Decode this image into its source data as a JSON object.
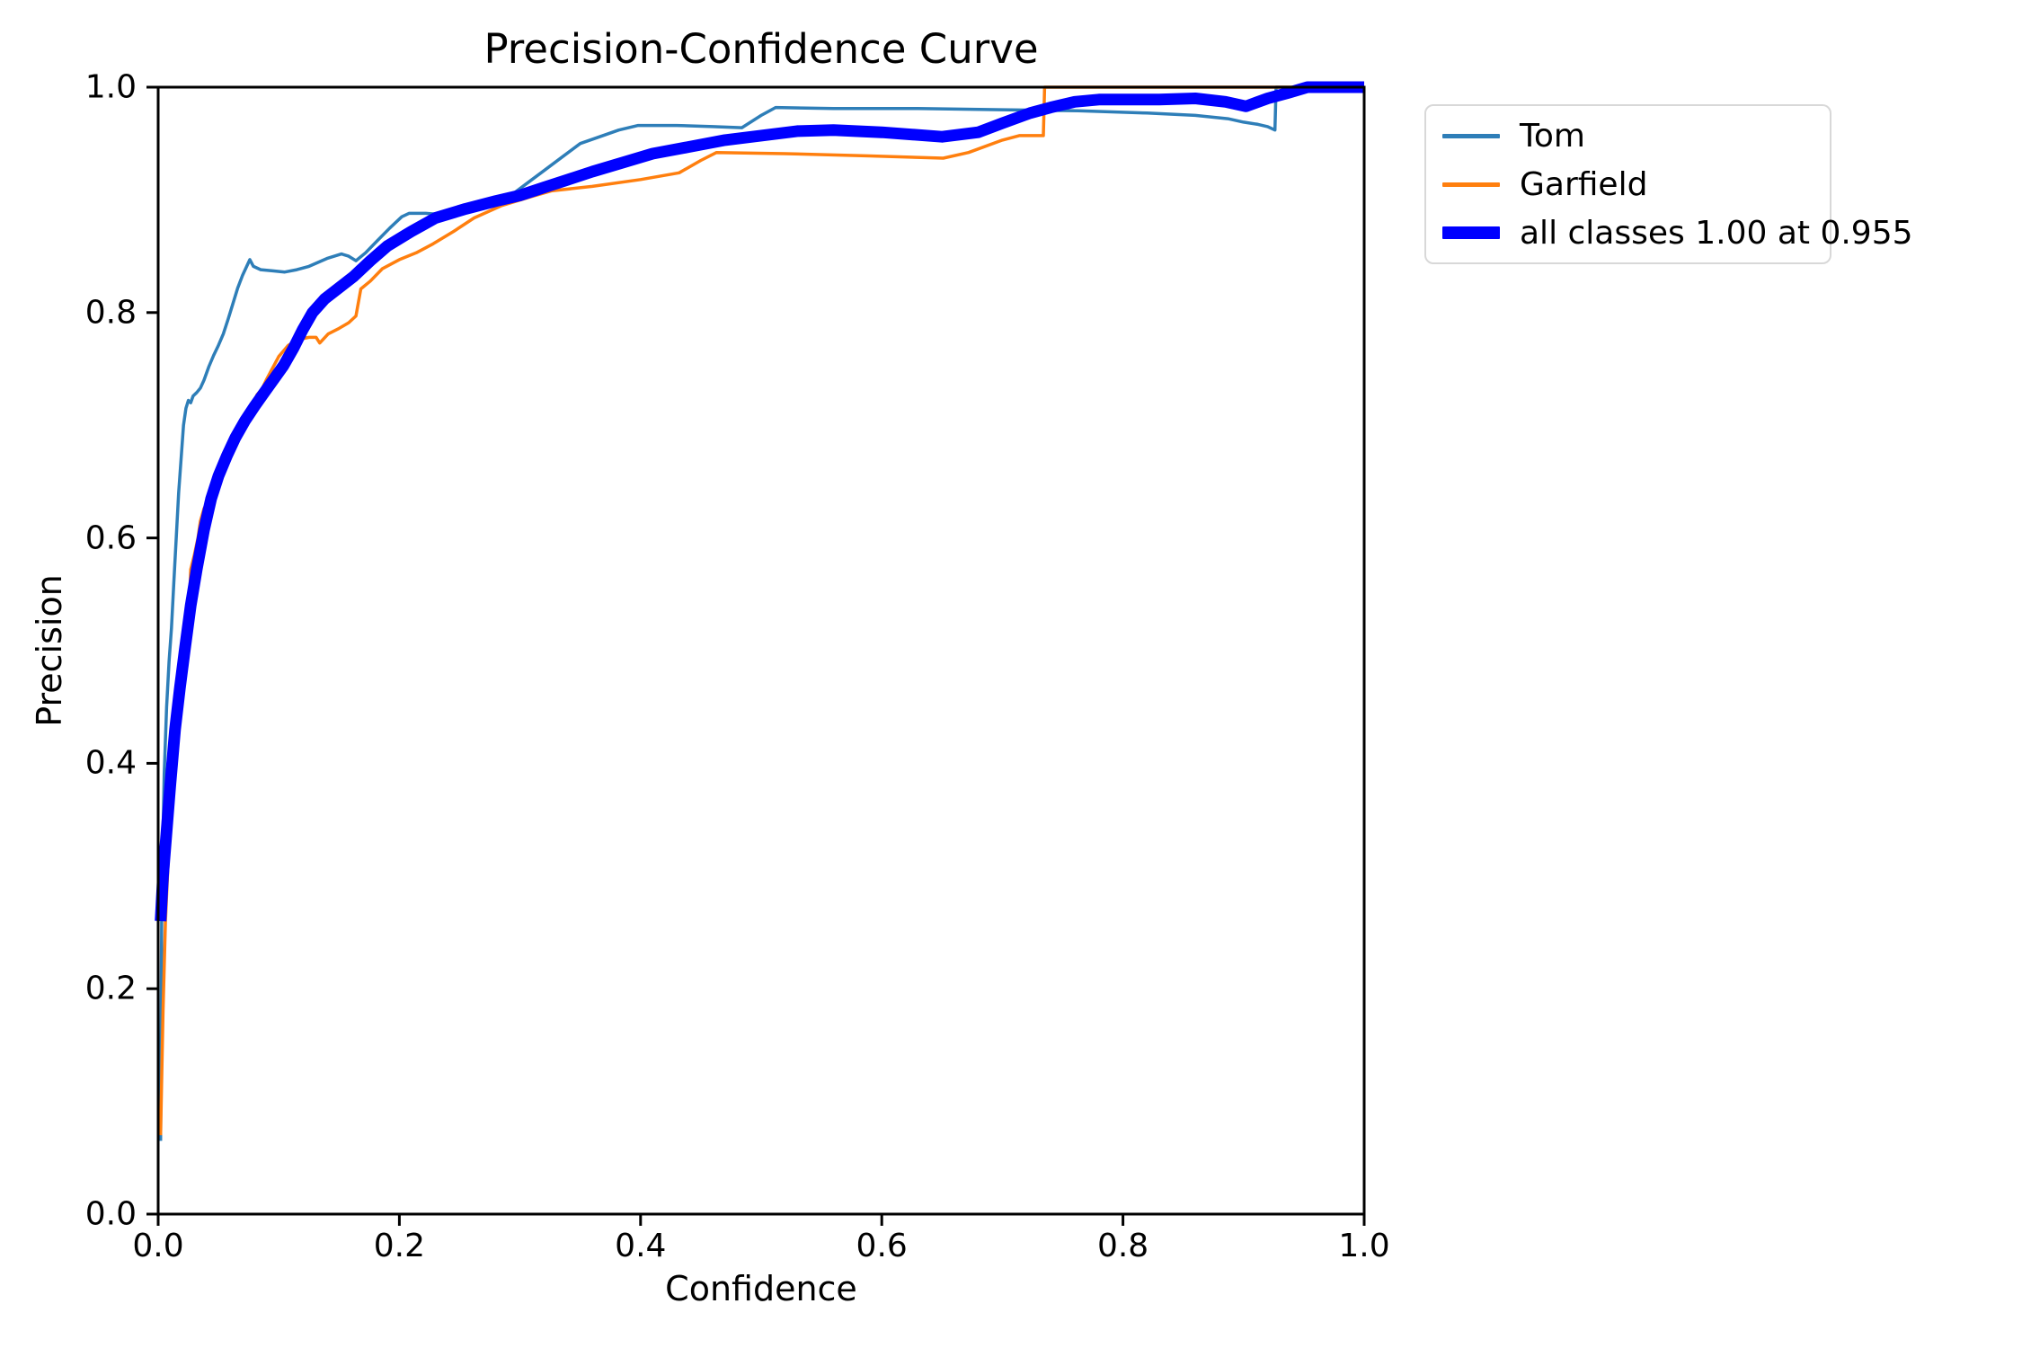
{
  "chart_data": {
    "type": "line",
    "title": "Precision-Confidence Curve",
    "xlabel": "Confidence",
    "ylabel": "Precision",
    "xlim": [
      0.0,
      1.0
    ],
    "ylim": [
      0.0,
      1.0
    ],
    "grid": false,
    "legend_position": "outside-upper-right",
    "x_ticks": {
      "values": [
        0.0,
        0.2,
        0.4,
        0.6,
        0.8,
        1.0
      ],
      "labels": [
        "0.0",
        "0.2",
        "0.4",
        "0.6",
        "0.8",
        "1.0"
      ]
    },
    "y_ticks": {
      "values": [
        0.0,
        0.2,
        0.4,
        0.6,
        0.8,
        1.0
      ],
      "labels": [
        "0.0",
        "0.2",
        "0.4",
        "0.6",
        "0.8",
        "1.0"
      ]
    },
    "axis_color": "#000000",
    "background_color": "#ffffff",
    "legend_border_color": "#d8d8d8",
    "series": [
      {
        "name": "Tom",
        "color": "#2e7eb8",
        "line_width": 3.5,
        "swatch_height": 5,
        "points": [
          [
            0.002,
            0.065
          ],
          [
            0.003,
            0.28
          ],
          [
            0.005,
            0.39
          ],
          [
            0.007,
            0.45
          ],
          [
            0.009,
            0.49
          ],
          [
            0.011,
            0.52
          ],
          [
            0.013,
            0.56
          ],
          [
            0.015,
            0.6
          ],
          [
            0.017,
            0.64
          ],
          [
            0.019,
            0.67
          ],
          [
            0.021,
            0.7
          ],
          [
            0.023,
            0.715
          ],
          [
            0.025,
            0.722
          ],
          [
            0.027,
            0.72
          ],
          [
            0.029,
            0.726
          ],
          [
            0.032,
            0.729
          ],
          [
            0.035,
            0.733
          ],
          [
            0.038,
            0.74
          ],
          [
            0.042,
            0.752
          ],
          [
            0.046,
            0.762
          ],
          [
            0.05,
            0.771
          ],
          [
            0.054,
            0.781
          ],
          [
            0.058,
            0.794
          ],
          [
            0.062,
            0.808
          ],
          [
            0.066,
            0.822
          ],
          [
            0.07,
            0.833
          ],
          [
            0.076,
            0.847
          ],
          [
            0.079,
            0.841
          ],
          [
            0.085,
            0.838
          ],
          [
            0.095,
            0.837
          ],
          [
            0.105,
            0.836
          ],
          [
            0.115,
            0.838
          ],
          [
            0.125,
            0.841
          ],
          [
            0.14,
            0.848
          ],
          [
            0.152,
            0.852
          ],
          [
            0.158,
            0.85
          ],
          [
            0.164,
            0.846
          ],
          [
            0.172,
            0.853
          ],
          [
            0.182,
            0.864
          ],
          [
            0.192,
            0.875
          ],
          [
            0.202,
            0.885
          ],
          [
            0.208,
            0.888
          ],
          [
            0.222,
            0.888
          ],
          [
            0.235,
            0.887
          ],
          [
            0.25,
            0.889
          ],
          [
            0.265,
            0.893
          ],
          [
            0.28,
            0.899
          ],
          [
            0.295,
            0.906
          ],
          [
            0.305,
            0.914
          ],
          [
            0.32,
            0.926
          ],
          [
            0.335,
            0.938
          ],
          [
            0.35,
            0.95
          ],
          [
            0.366,
            0.956
          ],
          [
            0.382,
            0.962
          ],
          [
            0.398,
            0.966
          ],
          [
            0.43,
            0.966
          ],
          [
            0.46,
            0.965
          ],
          [
            0.484,
            0.964
          ],
          [
            0.5,
            0.975
          ],
          [
            0.512,
            0.982
          ],
          [
            0.56,
            0.981
          ],
          [
            0.63,
            0.981
          ],
          [
            0.7,
            0.98
          ],
          [
            0.763,
            0.979
          ],
          [
            0.82,
            0.977
          ],
          [
            0.86,
            0.975
          ],
          [
            0.887,
            0.972
          ],
          [
            0.9,
            0.969
          ],
          [
            0.912,
            0.967
          ],
          [
            0.92,
            0.965
          ],
          [
            0.926,
            0.962
          ],
          [
            0.927,
            1.0
          ],
          [
            1.0,
            1.0
          ]
        ]
      },
      {
        "name": "Garfield",
        "color": "#ff7f0e",
        "line_width": 3.5,
        "swatch_height": 5,
        "points": [
          [
            0.002,
            0.07
          ],
          [
            0.004,
            0.18
          ],
          [
            0.006,
            0.26
          ],
          [
            0.009,
            0.33
          ],
          [
            0.012,
            0.39
          ],
          [
            0.015,
            0.44
          ],
          [
            0.018,
            0.48
          ],
          [
            0.021,
            0.515
          ],
          [
            0.024,
            0.538
          ],
          [
            0.026,
            0.545
          ],
          [
            0.027,
            0.572
          ],
          [
            0.03,
            0.585
          ],
          [
            0.033,
            0.6
          ],
          [
            0.035,
            0.615
          ],
          [
            0.038,
            0.626
          ],
          [
            0.041,
            0.632
          ],
          [
            0.045,
            0.645
          ],
          [
            0.049,
            0.655
          ],
          [
            0.053,
            0.664
          ],
          [
            0.057,
            0.676
          ],
          [
            0.062,
            0.688
          ],
          [
            0.067,
            0.696
          ],
          [
            0.072,
            0.705
          ],
          [
            0.077,
            0.714
          ],
          [
            0.082,
            0.727
          ],
          [
            0.086,
            0.732
          ],
          [
            0.09,
            0.741
          ],
          [
            0.093,
            0.747
          ],
          [
            0.1,
            0.761
          ],
          [
            0.108,
            0.771
          ],
          [
            0.116,
            0.776
          ],
          [
            0.125,
            0.778
          ],
          [
            0.131,
            0.778
          ],
          [
            0.134,
            0.773
          ],
          [
            0.141,
            0.781
          ],
          [
            0.15,
            0.786
          ],
          [
            0.158,
            0.791
          ],
          [
            0.164,
            0.797
          ],
          [
            0.168,
            0.821
          ],
          [
            0.176,
            0.828
          ],
          [
            0.186,
            0.839
          ],
          [
            0.2,
            0.847
          ],
          [
            0.214,
            0.853
          ],
          [
            0.228,
            0.861
          ],
          [
            0.245,
            0.872
          ],
          [
            0.262,
            0.884
          ],
          [
            0.285,
            0.895
          ],
          [
            0.31,
            0.903
          ],
          [
            0.326,
            0.908
          ],
          [
            0.36,
            0.912
          ],
          [
            0.4,
            0.918
          ],
          [
            0.432,
            0.924
          ],
          [
            0.45,
            0.935
          ],
          [
            0.463,
            0.942
          ],
          [
            0.52,
            0.941
          ],
          [
            0.59,
            0.939
          ],
          [
            0.651,
            0.937
          ],
          [
            0.672,
            0.942
          ],
          [
            0.7,
            0.953
          ],
          [
            0.714,
            0.957
          ],
          [
            0.734,
            0.957
          ],
          [
            0.735,
            1.0
          ],
          [
            1.0,
            1.0
          ]
        ]
      },
      {
        "name": "all classes 1.00 at 0.955",
        "color": "#0000ff",
        "line_width": 13,
        "swatch_height": 14,
        "points": [
          [
            0.002,
            0.26
          ],
          [
            0.004,
            0.3
          ],
          [
            0.007,
            0.34
          ],
          [
            0.01,
            0.38
          ],
          [
            0.014,
            0.43
          ],
          [
            0.018,
            0.467
          ],
          [
            0.022,
            0.5
          ],
          [
            0.027,
            0.54
          ],
          [
            0.032,
            0.572
          ],
          [
            0.038,
            0.607
          ],
          [
            0.044,
            0.635
          ],
          [
            0.05,
            0.655
          ],
          [
            0.057,
            0.673
          ],
          [
            0.064,
            0.689
          ],
          [
            0.072,
            0.704
          ],
          [
            0.08,
            0.717
          ],
          [
            0.088,
            0.729
          ],
          [
            0.096,
            0.741
          ],
          [
            0.104,
            0.753
          ],
          [
            0.112,
            0.768
          ],
          [
            0.12,
            0.785
          ],
          [
            0.128,
            0.8
          ],
          [
            0.138,
            0.812
          ],
          [
            0.15,
            0.822
          ],
          [
            0.162,
            0.832
          ],
          [
            0.176,
            0.846
          ],
          [
            0.19,
            0.859
          ],
          [
            0.21,
            0.872
          ],
          [
            0.23,
            0.884
          ],
          [
            0.255,
            0.892
          ],
          [
            0.28,
            0.899
          ],
          [
            0.3,
            0.904
          ],
          [
            0.32,
            0.911
          ],
          [
            0.34,
            0.918
          ],
          [
            0.36,
            0.925
          ],
          [
            0.385,
            0.933
          ],
          [
            0.41,
            0.941
          ],
          [
            0.44,
            0.947
          ],
          [
            0.47,
            0.953
          ],
          [
            0.5,
            0.957
          ],
          [
            0.53,
            0.961
          ],
          [
            0.56,
            0.962
          ],
          [
            0.6,
            0.96
          ],
          [
            0.65,
            0.956
          ],
          [
            0.68,
            0.96
          ],
          [
            0.7,
            0.968
          ],
          [
            0.723,
            0.977
          ],
          [
            0.74,
            0.982
          ],
          [
            0.76,
            0.987
          ],
          [
            0.78,
            0.989
          ],
          [
            0.83,
            0.989
          ],
          [
            0.86,
            0.99
          ],
          [
            0.885,
            0.987
          ],
          [
            0.902,
            0.983
          ],
          [
            0.92,
            0.99
          ],
          [
            0.937,
            0.995
          ],
          [
            0.953,
            1.0
          ],
          [
            1.0,
            1.0
          ]
        ]
      }
    ]
  }
}
